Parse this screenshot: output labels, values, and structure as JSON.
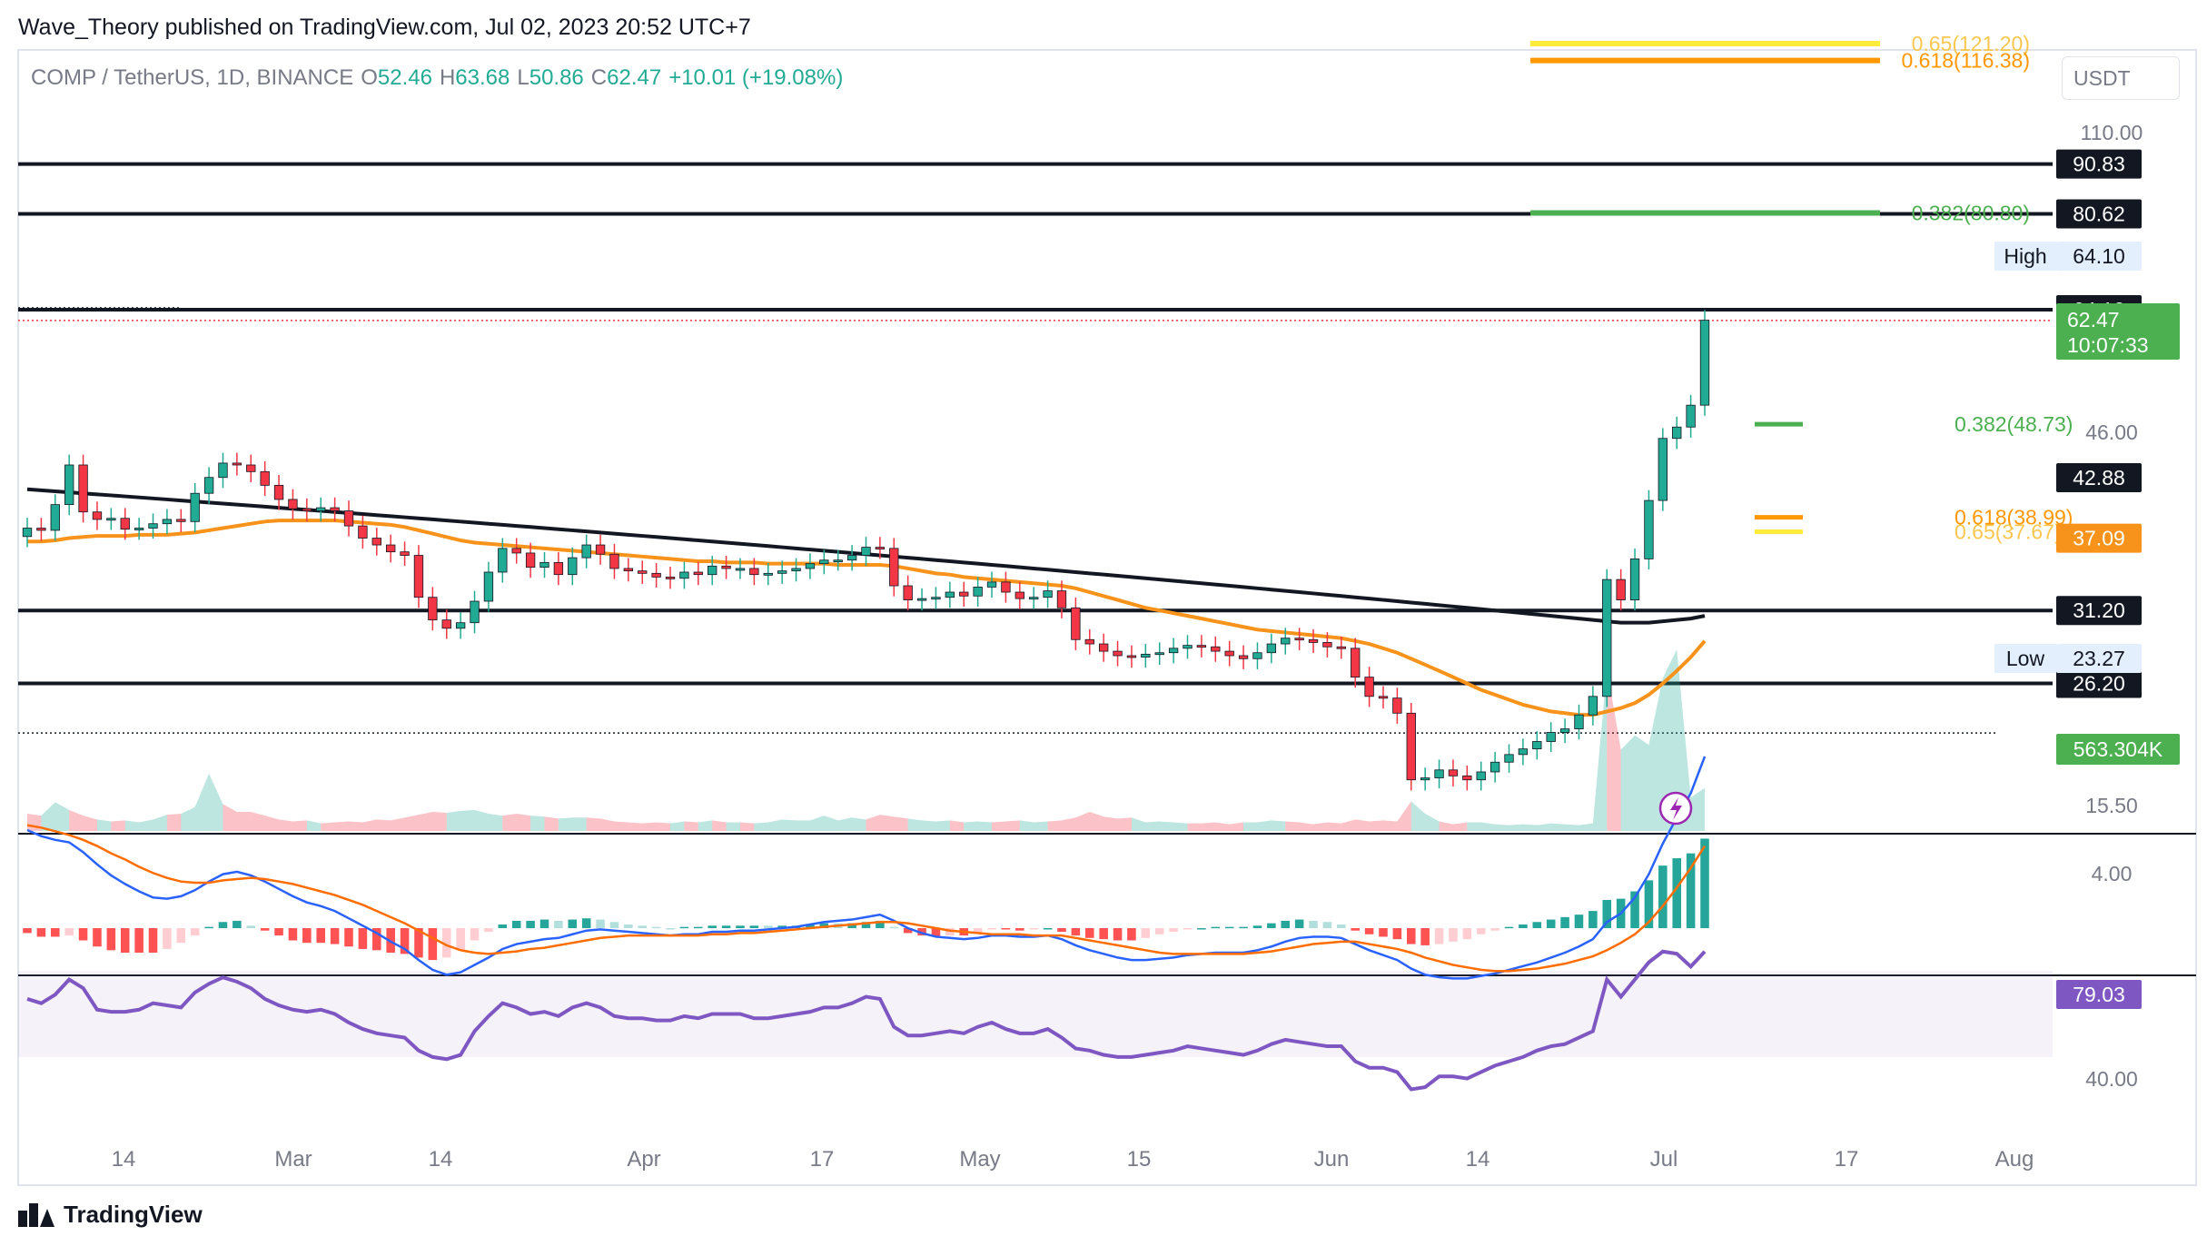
{
  "header": {
    "publisher": "Wave_Theory published on TradingView.com, Jul 02, 2023 20:52 UTC+7"
  },
  "legend": {
    "symbol": "COMP / TetherUS, 1D, BINANCE",
    "o_label": "O",
    "o_value": "52.46",
    "h_label": "H",
    "h_value": "63.68",
    "l_label": "L",
    "l_value": "50.86",
    "c_label": "C",
    "c_value": "62.47",
    "change": "+10.01 (+19.08%)"
  },
  "currency_button": "USDT",
  "footer": {
    "brand": "TradingView"
  },
  "colors": {
    "up": "#22ab94",
    "down": "#f23645",
    "ema_fast": "#f7931a",
    "ema_slow": "#131722",
    "fib_green": "#4caf50",
    "fib_orange": "#ff9800",
    "fib_yellow": "#ffeb3b",
    "macd": "#2962ff",
    "signal": "#ff6d00",
    "rsi": "#7e57c2"
  },
  "chart_data": [
    {
      "type": "candlestick",
      "title": "COMP / TetherUS, 1D, BINANCE",
      "x_labels": [
        "14",
        "Mar",
        "14",
        "Apr",
        "17",
        "May",
        "15",
        "Jun",
        "14",
        "Jul",
        "17",
        "Aug"
      ],
      "axis_labels": [
        "110.00",
        "46.00",
        "15.50"
      ],
      "horizontal_levels": [
        "90.83",
        "80.62",
        "64.10",
        "31.20",
        "26.20"
      ],
      "high_marker": {
        "label": "High",
        "value": "64.10"
      },
      "low_marker": {
        "label": "Low",
        "value": "23.27"
      },
      "last_price": "62.47",
      "countdown": "10:07:33",
      "ema_values": {
        "ema200": "42.88",
        "ema50": "37.09"
      },
      "fibonacci": [
        {
          "label": "0.65(121.20)",
          "value": 121.2
        },
        {
          "label": "0.618(116.38)",
          "value": 116.38
        },
        {
          "label": "0.382(80.80)",
          "value": 80.8
        },
        {
          "label": "0.382(48.73)",
          "value": 48.73
        },
        {
          "label": "0.618(38.99)",
          "value": 38.99
        },
        {
          "label": "0.65(37.67)",
          "value": 37.67
        }
      ],
      "volume_last": "563.304K",
      "closes": [
        38.0,
        37.8,
        40.2,
        44.2,
        39.5,
        38.8,
        38.9,
        37.9,
        38.0,
        38.4,
        38.8,
        38.6,
        41.3,
        42.9,
        44.4,
        44.2,
        43.5,
        42.1,
        40.7,
        39.8,
        39.6,
        39.9,
        39.6,
        38.2,
        37.1,
        36.5,
        35.9,
        35.6,
        32.2,
        30.5,
        29.9,
        30.3,
        31.9,
        34.2,
        36.2,
        35.8,
        34.6,
        35.0,
        34.0,
        35.4,
        36.5,
        35.7,
        34.5,
        34.3,
        34.1,
        33.8,
        33.7,
        34.2,
        34.0,
        34.7,
        34.5,
        34.5,
        34.0,
        34.1,
        34.3,
        34.5,
        34.9,
        35.2,
        35.2,
        35.6,
        36.3,
        36.2,
        33.1,
        32.0,
        32.1,
        32.2,
        32.6,
        32.3,
        33.0,
        33.4,
        32.6,
        32.1,
        32.2,
        32.7,
        31.4,
        29.1,
        28.8,
        28.3,
        28.0,
        27.9,
        28.1,
        28.2,
        28.5,
        28.7,
        28.6,
        28.3,
        28.0,
        27.8,
        28.2,
        28.8,
        29.2,
        29.1,
        28.9,
        28.6,
        28.5,
        26.6,
        25.4,
        25.3,
        24.4,
        20.8,
        20.9,
        21.3,
        21.0,
        20.8,
        21.2,
        21.7,
        22.1,
        22.4,
        22.8,
        23.3,
        23.5,
        24.3,
        25.4,
        33.6,
        32.0,
        35.3,
        40.6,
        47.1,
        48.4,
        51.0,
        62.5
      ],
      "ema200": [
        41.7,
        41.6,
        41.5,
        41.4,
        41.3,
        41.2,
        41.1,
        41.0,
        40.9,
        40.8,
        40.7,
        40.6,
        40.5,
        40.4,
        40.3,
        40.2,
        40.1,
        40.0,
        39.9,
        39.8,
        39.7,
        39.6,
        39.5,
        39.4,
        39.3,
        39.2,
        39.1,
        39.0,
        38.9,
        38.8,
        38.7,
        38.6,
        38.5,
        38.4,
        38.3,
        38.2,
        38.1,
        38.0,
        37.9,
        37.8,
        37.7,
        37.6,
        37.5,
        37.4,
        37.3,
        37.2,
        37.1,
        37.0,
        36.9,
        36.8,
        36.7,
        36.6,
        36.5,
        36.4,
        36.3,
        36.2,
        36.1,
        36.0,
        35.9,
        35.8,
        35.7,
        35.6,
        35.5,
        35.4,
        35.3,
        35.2,
        35.1,
        35.0,
        34.9,
        34.8,
        34.7,
        34.6,
        34.5,
        34.4,
        34.3,
        34.2,
        34.1,
        34.0,
        33.9,
        33.8,
        33.7,
        33.6,
        33.5,
        33.4,
        33.3,
        33.2,
        33.1,
        33.0,
        32.9,
        32.8,
        32.7,
        32.6,
        32.5,
        32.4,
        32.3,
        32.2,
        32.1,
        32.0,
        31.9,
        31.8,
        31.7,
        31.6,
        31.5,
        31.4,
        31.3,
        31.2,
        31.1,
        31.0,
        30.9,
        30.8,
        30.7,
        30.6,
        30.5,
        30.4,
        30.3,
        30.3,
        30.3,
        30.4,
        30.5,
        30.6,
        30.8
      ],
      "ema50": [
        36.8,
        36.8,
        36.9,
        37.1,
        37.2,
        37.3,
        37.3,
        37.3,
        37.4,
        37.4,
        37.4,
        37.5,
        37.6,
        37.8,
        38.0,
        38.2,
        38.4,
        38.6,
        38.7,
        38.7,
        38.7,
        38.7,
        38.7,
        38.6,
        38.5,
        38.4,
        38.3,
        38.1,
        37.8,
        37.5,
        37.2,
        36.9,
        36.7,
        36.6,
        36.5,
        36.4,
        36.3,
        36.2,
        36.1,
        36.0,
        35.9,
        35.8,
        35.7,
        35.6,
        35.5,
        35.4,
        35.3,
        35.2,
        35.1,
        35.1,
        35.0,
        35.0,
        35.0,
        34.9,
        34.9,
        34.9,
        34.9,
        34.9,
        34.8,
        34.8,
        34.8,
        34.8,
        34.7,
        34.5,
        34.3,
        34.1,
        34.0,
        33.8,
        33.7,
        33.6,
        33.5,
        33.4,
        33.3,
        33.2,
        33.1,
        32.9,
        32.6,
        32.3,
        32.0,
        31.7,
        31.4,
        31.2,
        31.0,
        30.8,
        30.6,
        30.4,
        30.2,
        30.0,
        29.8,
        29.7,
        29.6,
        29.5,
        29.4,
        29.3,
        29.2,
        29.0,
        28.8,
        28.5,
        28.2,
        27.8,
        27.4,
        27.0,
        26.6,
        26.2,
        25.8,
        25.5,
        25.2,
        24.9,
        24.7,
        24.5,
        24.4,
        24.3,
        24.3,
        24.5,
        24.7,
        25.0,
        25.5,
        26.2,
        27.0,
        27.9,
        29.0
      ],
      "volume": [
        0.18,
        0.16,
        0.3,
        0.22,
        0.16,
        0.12,
        0.1,
        0.11,
        0.09,
        0.12,
        0.17,
        0.18,
        0.25,
        0.6,
        0.28,
        0.2,
        0.2,
        0.16,
        0.12,
        0.1,
        0.11,
        0.08,
        0.09,
        0.1,
        0.09,
        0.12,
        0.11,
        0.14,
        0.17,
        0.2,
        0.19,
        0.21,
        0.22,
        0.18,
        0.16,
        0.18,
        0.16,
        0.15,
        0.13,
        0.14,
        0.14,
        0.13,
        0.1,
        0.09,
        0.08,
        0.09,
        0.08,
        0.1,
        0.09,
        0.11,
        0.09,
        0.09,
        0.08,
        0.09,
        0.12,
        0.11,
        0.11,
        0.16,
        0.11,
        0.14,
        0.12,
        0.17,
        0.15,
        0.13,
        0.11,
        0.1,
        0.11,
        0.09,
        0.1,
        0.09,
        0.1,
        0.11,
        0.09,
        0.1,
        0.11,
        0.14,
        0.2,
        0.15,
        0.13,
        0.14,
        0.09,
        0.1,
        0.09,
        0.08,
        0.08,
        0.09,
        0.07,
        0.09,
        0.09,
        0.11,
        0.1,
        0.09,
        0.07,
        0.09,
        0.08,
        0.12,
        0.1,
        0.11,
        0.1,
        0.31,
        0.18,
        0.1,
        0.07,
        0.09,
        0.09,
        0.07,
        0.06,
        0.07,
        0.06,
        0.08,
        0.07,
        0.06,
        0.08,
        1.7,
        0.85,
        1.0,
        0.9,
        1.6,
        1.9,
        0.35,
        0.45
      ],
      "macd": [
        8.0,
        7.5,
        7.2,
        7.0,
        6.2,
        5.2,
        4.3,
        3.6,
        3.0,
        2.5,
        2.4,
        2.6,
        3.1,
        3.8,
        4.4,
        4.6,
        4.3,
        3.8,
        3.2,
        2.6,
        2.1,
        1.8,
        1.4,
        0.8,
        0.2,
        -0.4,
        -1.1,
        -1.7,
        -2.6,
        -3.4,
        -3.8,
        -3.6,
        -3.0,
        -2.4,
        -1.7,
        -1.3,
        -1.1,
        -0.9,
        -0.8,
        -0.5,
        -0.2,
        -0.1,
        -0.2,
        -0.3,
        -0.4,
        -0.5,
        -0.6,
        -0.5,
        -0.5,
        -0.3,
        -0.3,
        -0.2,
        -0.2,
        -0.1,
        0.0,
        0.1,
        0.3,
        0.5,
        0.6,
        0.7,
        0.9,
        1.1,
        0.6,
        0.0,
        -0.4,
        -0.7,
        -0.8,
        -0.9,
        -0.8,
        -0.6,
        -0.6,
        -0.7,
        -0.7,
        -0.6,
        -0.9,
        -1.4,
        -1.8,
        -2.1,
        -2.4,
        -2.6,
        -2.6,
        -2.5,
        -2.4,
        -2.2,
        -2.1,
        -2.0,
        -2.0,
        -2.0,
        -1.8,
        -1.5,
        -1.1,
        -0.8,
        -0.7,
        -0.7,
        -0.8,
        -1.3,
        -1.8,
        -2.2,
        -2.6,
        -3.3,
        -3.8,
        -4.0,
        -4.1,
        -4.1,
        -3.9,
        -3.7,
        -3.4,
        -3.1,
        -2.8,
        -2.4,
        -2.0,
        -1.5,
        -0.9,
        0.5,
        1.2,
        2.5,
        4.4,
        6.9,
        9.0,
        11.0,
        14.0
      ],
      "macd_signal": [
        8.4,
        8.2,
        7.9,
        7.6,
        7.2,
        6.7,
        6.1,
        5.6,
        5.0,
        4.5,
        4.1,
        3.8,
        3.7,
        3.7,
        3.9,
        4.0,
        4.1,
        4.0,
        3.8,
        3.6,
        3.3,
        3.0,
        2.7,
        2.3,
        1.9,
        1.4,
        0.9,
        0.4,
        -0.2,
        -0.8,
        -1.4,
        -1.8,
        -2.0,
        -2.1,
        -2.0,
        -1.9,
        -1.7,
        -1.6,
        -1.4,
        -1.2,
        -1.0,
        -0.8,
        -0.7,
        -0.6,
        -0.6,
        -0.6,
        -0.6,
        -0.6,
        -0.6,
        -0.5,
        -0.5,
        -0.4,
        -0.4,
        -0.3,
        -0.2,
        -0.1,
        0.0,
        0.1,
        0.2,
        0.3,
        0.4,
        0.5,
        0.5,
        0.4,
        0.2,
        0.0,
        -0.2,
        -0.3,
        -0.4,
        -0.5,
        -0.5,
        -0.5,
        -0.6,
        -0.6,
        -0.6,
        -0.8,
        -1.0,
        -1.2,
        -1.4,
        -1.6,
        -1.8,
        -2.0,
        -2.1,
        -2.1,
        -2.1,
        -2.1,
        -2.1,
        -2.1,
        -2.0,
        -1.9,
        -1.7,
        -1.5,
        -1.3,
        -1.2,
        -1.1,
        -1.1,
        -1.3,
        -1.5,
        -1.7,
        -2.0,
        -2.4,
        -2.7,
        -3.0,
        -3.2,
        -3.4,
        -3.5,
        -3.5,
        -3.4,
        -3.3,
        -3.1,
        -2.9,
        -2.6,
        -2.3,
        -1.8,
        -1.2,
        -0.5,
        0.5,
        1.8,
        3.3,
        4.9,
        6.7
      ],
      "rsi": [
        57,
        55,
        59,
        66,
        62,
        52,
        51,
        51,
        52,
        55,
        54,
        53,
        60,
        64,
        67,
        65,
        62,
        57,
        54,
        52,
        51,
        52,
        50,
        46,
        43,
        41,
        40,
        39,
        33,
        30,
        29,
        31,
        42,
        49,
        55,
        53,
        50,
        51,
        49,
        53,
        55,
        53,
        49,
        48,
        48,
        47,
        47,
        49,
        48,
        50,
        50,
        50,
        48,
        48,
        49,
        50,
        51,
        53,
        53,
        55,
        58,
        57,
        44,
        40,
        40,
        41,
        42,
        41,
        44,
        46,
        43,
        41,
        41,
        43,
        39,
        34,
        33,
        31,
        30,
        30,
        31,
        32,
        33,
        35,
        34,
        33,
        32,
        31,
        33,
        36,
        38,
        37,
        36,
        35,
        35,
        28,
        25,
        25,
        23,
        15,
        16,
        21,
        21,
        20,
        23,
        26,
        28,
        30,
        33,
        35,
        36,
        39,
        42,
        66,
        58,
        66,
        74,
        79,
        78,
        72,
        79
      ],
      "macd_axis_label": "4.00",
      "rsi_axis_label": "40.00",
      "rsi_last": "79.03"
    }
  ]
}
